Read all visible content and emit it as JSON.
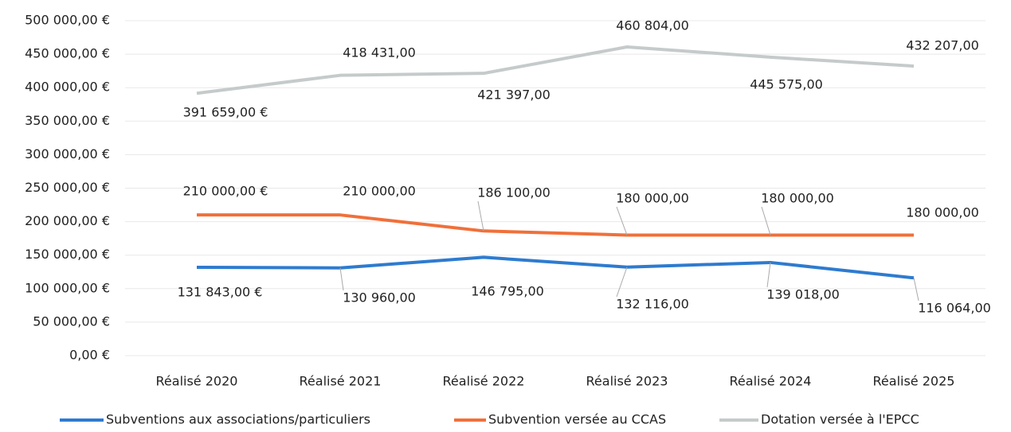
{
  "chart_data": {
    "type": "line",
    "categories": [
      "Réalisé 2020",
      "Réalisé 2021",
      "Réalisé 2022",
      "Réalisé 2023",
      "Réalisé 2024",
      "Réalisé 2025"
    ],
    "series": [
      {
        "name": "Subventions aux associations/particuliers",
        "color": "#2e7bcf",
        "values": [
          131843,
          130960,
          146795,
          132116,
          139018,
          116064
        ],
        "value_labels": [
          "131 843,00 €",
          "130 960,00",
          "146 795,00",
          "132 116,00",
          "139 018,00",
          "116 064,00"
        ]
      },
      {
        "name": "Subvention versée au CCAS",
        "color": "#f0703a",
        "values": [
          210000,
          210000,
          186100,
          180000,
          180000,
          180000
        ],
        "value_labels": [
          "210 000,00 €",
          "210 000,00",
          "186 100,00",
          "180 000,00",
          "180 000,00",
          "180 000,00"
        ]
      },
      {
        "name": "Dotation versée à l'EPCC",
        "color": "#c5cacb",
        "values": [
          391659,
          418431,
          421397,
          460804,
          445575,
          432207
        ],
        "value_labels": [
          "391 659,00 €",
          "418 431,00",
          "421 397,00",
          "460 804,00",
          "445 575,00",
          "432 207,00"
        ]
      }
    ],
    "ylim": [
      0,
      500000
    ],
    "yticks": [
      {
        "value": 0,
        "label": "0,00 €"
      },
      {
        "value": 50000,
        "label": "50 000,00 €"
      },
      {
        "value": 100000,
        "label": "100 000,00 €"
      },
      {
        "value": 150000,
        "label": "150 000,00 €"
      },
      {
        "value": 200000,
        "label": "200 000,00 €"
      },
      {
        "value": 250000,
        "label": "250 000,00 €"
      },
      {
        "value": 300000,
        "label": "300 000,00 €"
      },
      {
        "value": 350000,
        "label": "350 000,00 €"
      },
      {
        "value": 400000,
        "label": "400 000,00 €"
      },
      {
        "value": 450000,
        "label": "450 000,00 €"
      },
      {
        "value": 500000,
        "label": "500 000,00 €"
      }
    ],
    "grid": true,
    "legend": "bottom"
  }
}
